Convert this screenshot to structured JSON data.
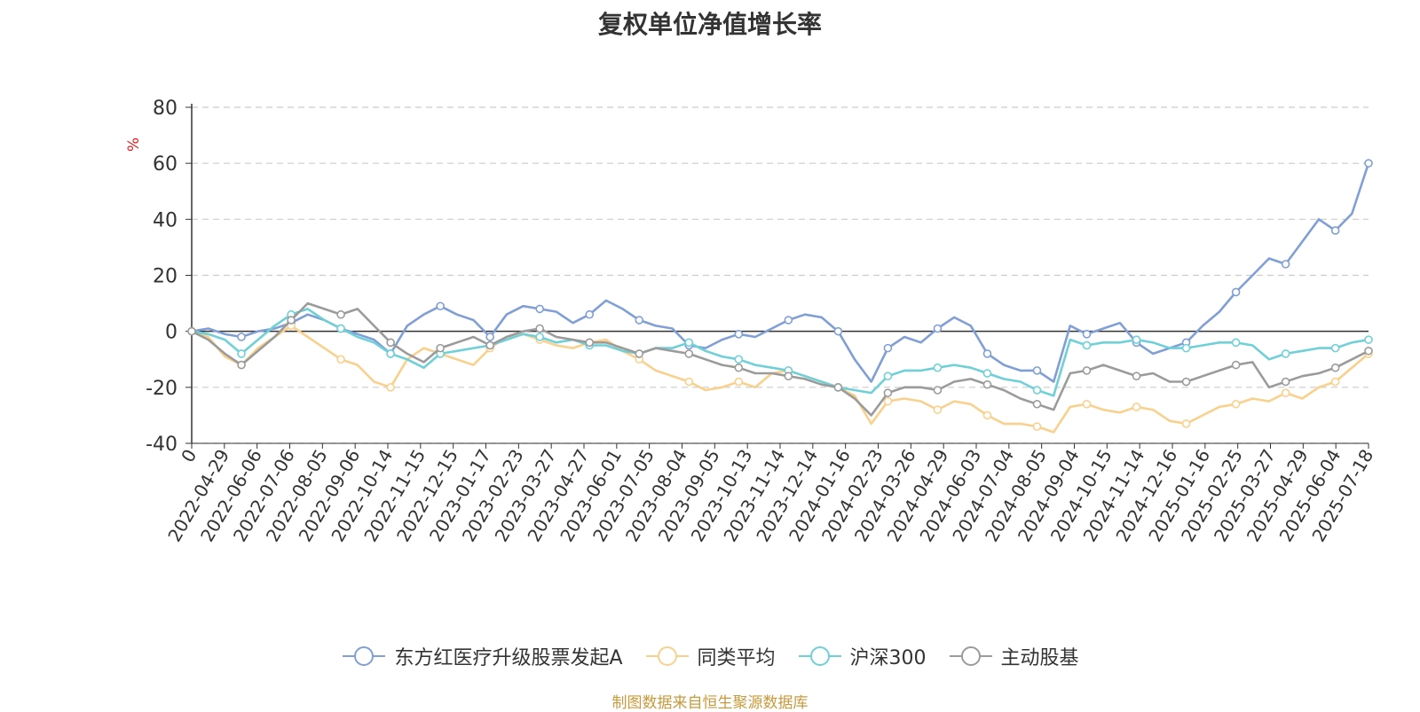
{
  "title": "复权单位净值增长率",
  "source": "制图数据来自恒生聚源数据库",
  "chart_data": {
    "type": "line",
    "title": "复权单位净值增长率",
    "ylabel": "%",
    "ylim": [
      -40,
      80
    ],
    "yticks": [
      "80",
      "60",
      "40",
      "20",
      "0",
      "-20",
      "-40"
    ],
    "xticks": [
      "0",
      "2022-04-29",
      "2022-06-06",
      "2022-07-06",
      "2022-08-05",
      "2022-09-06",
      "2022-10-14",
      "2022-11-15",
      "2022-12-15",
      "2023-01-17",
      "2023-02-23",
      "2023-03-27",
      "2023-04-27",
      "2023-06-01",
      "2023-07-05",
      "2023-08-04",
      "2023-09-05",
      "2023-10-13",
      "2023-11-14",
      "2023-12-14",
      "2024-01-16",
      "2024-02-23",
      "2024-03-26",
      "2024-04-29",
      "2024-06-03",
      "2024-07-04",
      "2024-08-05",
      "2024-09-04",
      "2024-10-15",
      "2024-11-14",
      "2024-12-16",
      "2025-01-16",
      "2025-02-25",
      "2025-03-27",
      "2025-04-29",
      "2025-06-04",
      "2025-07-18"
    ],
    "grid": "dashed horizontal",
    "legend_position": "bottom",
    "series": [
      {
        "name": "东方红医疗升级股票发起A",
        "color": "#7f9fd6",
        "values": [
          0,
          1,
          -1,
          -2,
          0,
          1,
          3,
          6,
          4,
          1,
          -1,
          -3,
          -8,
          2,
          6,
          9,
          6,
          4,
          -2,
          6,
          9,
          8,
          7,
          3,
          6,
          11,
          8,
          4,
          2,
          1,
          -5,
          -6,
          -3,
          -1,
          -2,
          1,
          4,
          6,
          5,
          0,
          -10,
          -18,
          -6,
          -2,
          -4,
          1,
          5,
          2,
          -8,
          -12,
          -14,
          -14,
          -18,
          2,
          -1,
          1,
          3,
          -4,
          -8,
          -6,
          -4,
          2,
          7,
          14,
          20,
          26,
          24,
          32,
          40,
          36,
          42,
          60
        ]
      },
      {
        "name": "同类平均",
        "color": "#f9d08c",
        "values": [
          0,
          -2,
          -9,
          -12,
          -6,
          -2,
          2,
          -2,
          -6,
          -10,
          -12,
          -18,
          -20,
          -10,
          -6,
          -8,
          -10,
          -12,
          -6,
          -2,
          -1,
          -3,
          -5,
          -6,
          -4,
          -3,
          -7,
          -10,
          -14,
          -16,
          -18,
          -21,
          -20,
          -18,
          -20,
          -15,
          -14,
          -16,
          -18,
          -20,
          -23,
          -33,
          -25,
          -24,
          -25,
          -28,
          -25,
          -26,
          -30,
          -33,
          -33,
          -34,
          -36,
          -27,
          -26,
          -28,
          -29,
          -27,
          -28,
          -32,
          -33,
          -30,
          -27,
          -26,
          -24,
          -25,
          -22,
          -24,
          -20,
          -18,
          -13,
          -8
        ]
      },
      {
        "name": "沪深300",
        "color": "#6fd0d8",
        "values": [
          0,
          -1,
          -3,
          -8,
          -3,
          2,
          6,
          8,
          4,
          1,
          -2,
          -4,
          -8,
          -10,
          -13,
          -8,
          -7,
          -6,
          -5,
          -3,
          -1,
          -2,
          -4,
          -3,
          -5,
          -5,
          -7,
          -8,
          -6,
          -6,
          -4,
          -7,
          -9,
          -10,
          -12,
          -13,
          -14,
          -16,
          -18,
          -20,
          -21,
          -22,
          -16,
          -14,
          -14,
          -13,
          -12,
          -13,
          -15,
          -17,
          -18,
          -21,
          -23,
          -3,
          -5,
          -4,
          -4,
          -3,
          -4,
          -6,
          -6,
          -5,
          -4,
          -4,
          -5,
          -10,
          -8,
          -7,
          -6,
          -6,
          -4,
          -3
        ]
      },
      {
        "name": "主动股基",
        "color": "#9b9b9b",
        "values": [
          0,
          -3,
          -8,
          -12,
          -7,
          -2,
          4,
          10,
          8,
          6,
          8,
          2,
          -4,
          -8,
          -11,
          -6,
          -4,
          -2,
          -5,
          -2,
          0,
          1,
          -2,
          -3,
          -4,
          -4,
          -6,
          -8,
          -6,
          -7,
          -8,
          -10,
          -12,
          -13,
          -15,
          -15,
          -16,
          -17,
          -19,
          -20,
          -24,
          -30,
          -22,
          -20,
          -20,
          -21,
          -18,
          -17,
          -19,
          -21,
          -24,
          -26,
          -28,
          -15,
          -14,
          -12,
          -14,
          -16,
          -15,
          -18,
          -18,
          -16,
          -14,
          -12,
          -11,
          -20,
          -18,
          -16,
          -15,
          -13,
          -10,
          -7
        ]
      }
    ]
  }
}
